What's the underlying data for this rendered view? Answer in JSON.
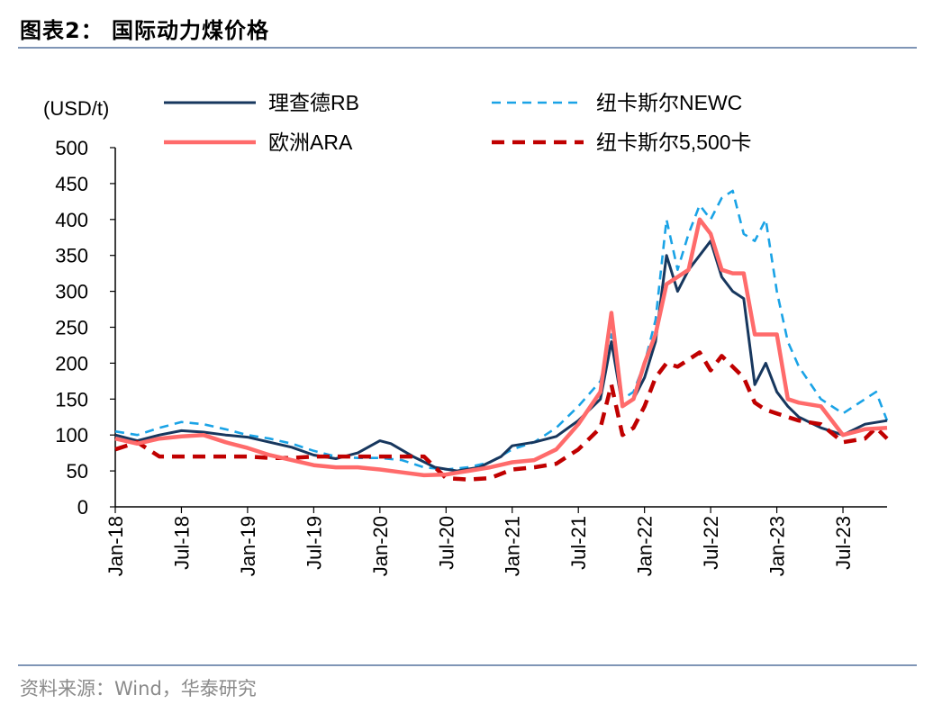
{
  "header": {
    "title": "图表2：  国际动力煤价格"
  },
  "footer": {
    "source": "资料来源：Wind，华泰研究"
  },
  "chart_data": {
    "type": "line",
    "unit_label": "(USD/t)",
    "ylim": [
      0,
      500
    ],
    "y_ticks": [
      0,
      50,
      100,
      150,
      200,
      250,
      300,
      350,
      400,
      450,
      500
    ],
    "x_range": [
      "2018-01",
      "2023-11"
    ],
    "x_ticks": [
      {
        "date": "2018-01",
        "label": "Jan-18"
      },
      {
        "date": "2018-07",
        "label": "Jul-18"
      },
      {
        "date": "2019-01",
        "label": "Jan-19"
      },
      {
        "date": "2019-07",
        "label": "Jul-19"
      },
      {
        "date": "2020-01",
        "label": "Jan-20"
      },
      {
        "date": "2020-07",
        "label": "Jul-20"
      },
      {
        "date": "2021-01",
        "label": "Jan-21"
      },
      {
        "date": "2021-07",
        "label": "Jul-21"
      },
      {
        "date": "2022-01",
        "label": "Jan-22"
      },
      {
        "date": "2022-07",
        "label": "Jul-22"
      },
      {
        "date": "2023-01",
        "label": "Jan-23"
      },
      {
        "date": "2023-07",
        "label": "Jul-23"
      }
    ],
    "grid": false,
    "legend_position": "top",
    "series": [
      {
        "name": "理查德RB",
        "color": "#17375e",
        "dash": "solid",
        "width": 3,
        "points": [
          [
            "2018-01",
            100
          ],
          [
            "2018-03",
            92
          ],
          [
            "2018-05",
            100
          ],
          [
            "2018-07",
            106
          ],
          [
            "2018-09",
            104
          ],
          [
            "2018-11",
            100
          ],
          [
            "2019-01",
            97
          ],
          [
            "2019-03",
            90
          ],
          [
            "2019-05",
            83
          ],
          [
            "2019-07",
            72
          ],
          [
            "2019-09",
            67
          ],
          [
            "2019-11",
            75
          ],
          [
            "2020-01",
            92
          ],
          [
            "2020-02",
            88
          ],
          [
            "2020-04",
            70
          ],
          [
            "2020-06",
            55
          ],
          [
            "2020-08",
            50
          ],
          [
            "2020-10",
            55
          ],
          [
            "2020-12",
            70
          ],
          [
            "2021-01",
            85
          ],
          [
            "2021-03",
            90
          ],
          [
            "2021-05",
            98
          ],
          [
            "2021-07",
            120
          ],
          [
            "2021-09",
            150
          ],
          [
            "2021-10",
            230
          ],
          [
            "2021-11",
            140
          ],
          [
            "2021-12",
            150
          ],
          [
            "2022-01",
            180
          ],
          [
            "2022-02",
            230
          ],
          [
            "2022-03",
            350
          ],
          [
            "2022-04",
            300
          ],
          [
            "2022-05",
            330
          ],
          [
            "2022-06",
            350
          ],
          [
            "2022-07",
            370
          ],
          [
            "2022-08",
            320
          ],
          [
            "2022-09",
            300
          ],
          [
            "2022-10",
            290
          ],
          [
            "2022-11",
            170
          ],
          [
            "2022-12",
            200
          ],
          [
            "2023-01",
            160
          ],
          [
            "2023-02",
            140
          ],
          [
            "2023-03",
            125
          ],
          [
            "2023-05",
            110
          ],
          [
            "2023-07",
            100
          ],
          [
            "2023-09",
            115
          ],
          [
            "2023-11",
            120
          ]
        ]
      },
      {
        "name": "纽卡斯尔NEWC",
        "color": "#1aa3e6",
        "dash": "dashed",
        "width": 2.6,
        "points": [
          [
            "2018-01",
            105
          ],
          [
            "2018-03",
            100
          ],
          [
            "2018-05",
            110
          ],
          [
            "2018-07",
            118
          ],
          [
            "2018-09",
            115
          ],
          [
            "2018-11",
            108
          ],
          [
            "2019-01",
            100
          ],
          [
            "2019-03",
            95
          ],
          [
            "2019-05",
            88
          ],
          [
            "2019-07",
            78
          ],
          [
            "2019-09",
            70
          ],
          [
            "2019-11",
            68
          ],
          [
            "2020-01",
            68
          ],
          [
            "2020-03",
            65
          ],
          [
            "2020-05",
            55
          ],
          [
            "2020-07",
            52
          ],
          [
            "2020-09",
            55
          ],
          [
            "2020-11",
            62
          ],
          [
            "2021-01",
            80
          ],
          [
            "2021-03",
            90
          ],
          [
            "2021-05",
            110
          ],
          [
            "2021-07",
            140
          ],
          [
            "2021-09",
            175
          ],
          [
            "2021-10",
            240
          ],
          [
            "2021-11",
            150
          ],
          [
            "2021-12",
            160
          ],
          [
            "2022-01",
            200
          ],
          [
            "2022-02",
            260
          ],
          [
            "2022-03",
            400
          ],
          [
            "2022-04",
            330
          ],
          [
            "2022-05",
            380
          ],
          [
            "2022-06",
            420
          ],
          [
            "2022-07",
            400
          ],
          [
            "2022-08",
            430
          ],
          [
            "2022-09",
            440
          ],
          [
            "2022-10",
            380
          ],
          [
            "2022-11",
            370
          ],
          [
            "2022-12",
            400
          ],
          [
            "2023-01",
            300
          ],
          [
            "2023-02",
            230
          ],
          [
            "2023-03",
            195
          ],
          [
            "2023-05",
            150
          ],
          [
            "2023-07",
            130
          ],
          [
            "2023-09",
            150
          ],
          [
            "2023-10",
            160
          ],
          [
            "2023-11",
            120
          ]
        ]
      },
      {
        "name": "欧洲ARA",
        "color": "#ff6b6b",
        "dash": "solid",
        "width": 4.5,
        "points": [
          [
            "2018-01",
            95
          ],
          [
            "2018-03",
            88
          ],
          [
            "2018-05",
            95
          ],
          [
            "2018-07",
            98
          ],
          [
            "2018-09",
            100
          ],
          [
            "2018-11",
            90
          ],
          [
            "2019-01",
            82
          ],
          [
            "2019-03",
            72
          ],
          [
            "2019-05",
            65
          ],
          [
            "2019-07",
            58
          ],
          [
            "2019-09",
            55
          ],
          [
            "2019-11",
            55
          ],
          [
            "2020-01",
            52
          ],
          [
            "2020-03",
            48
          ],
          [
            "2020-05",
            44
          ],
          [
            "2020-07",
            45
          ],
          [
            "2020-09",
            50
          ],
          [
            "2020-11",
            55
          ],
          [
            "2021-01",
            62
          ],
          [
            "2021-03",
            65
          ],
          [
            "2021-05",
            80
          ],
          [
            "2021-07",
            115
          ],
          [
            "2021-09",
            160
          ],
          [
            "2021-10",
            270
          ],
          [
            "2021-11",
            140
          ],
          [
            "2021-12",
            150
          ],
          [
            "2022-01",
            200
          ],
          [
            "2022-02",
            240
          ],
          [
            "2022-03",
            310
          ],
          [
            "2022-04",
            320
          ],
          [
            "2022-05",
            330
          ],
          [
            "2022-06",
            400
          ],
          [
            "2022-07",
            380
          ],
          [
            "2022-08",
            330
          ],
          [
            "2022-09",
            325
          ],
          [
            "2022-10",
            325
          ],
          [
            "2022-11",
            240
          ],
          [
            "2022-12",
            240
          ],
          [
            "2023-01",
            240
          ],
          [
            "2023-02",
            150
          ],
          [
            "2023-03",
            145
          ],
          [
            "2023-05",
            140
          ],
          [
            "2023-07",
            100
          ],
          [
            "2023-09",
            108
          ],
          [
            "2023-11",
            110
          ]
        ]
      },
      {
        "name": "纽卡斯尔5,500卡",
        "color": "#c00000",
        "dash": "dashed",
        "width": 4.5,
        "points": [
          [
            "2018-01",
            80
          ],
          [
            "2018-03",
            90
          ],
          [
            "2018-05",
            70
          ],
          [
            "2018-07",
            70
          ],
          [
            "2018-09",
            70
          ],
          [
            "2018-11",
            70
          ],
          [
            "2019-01",
            70
          ],
          [
            "2019-03",
            68
          ],
          [
            "2019-05",
            68
          ],
          [
            "2019-07",
            70
          ],
          [
            "2019-09",
            70
          ],
          [
            "2019-11",
            70
          ],
          [
            "2020-01",
            70
          ],
          [
            "2020-03",
            70
          ],
          [
            "2020-05",
            70
          ],
          [
            "2020-07",
            40
          ],
          [
            "2020-09",
            38
          ],
          [
            "2020-11",
            40
          ],
          [
            "2021-01",
            52
          ],
          [
            "2021-03",
            55
          ],
          [
            "2021-05",
            60
          ],
          [
            "2021-07",
            80
          ],
          [
            "2021-09",
            110
          ],
          [
            "2021-10",
            170
          ],
          [
            "2021-11",
            100
          ],
          [
            "2021-12",
            110
          ],
          [
            "2022-01",
            140
          ],
          [
            "2022-02",
            180
          ],
          [
            "2022-03",
            200
          ],
          [
            "2022-04",
            195
          ],
          [
            "2022-05",
            205
          ],
          [
            "2022-06",
            215
          ],
          [
            "2022-07",
            190
          ],
          [
            "2022-08",
            210
          ],
          [
            "2022-09",
            195
          ],
          [
            "2022-10",
            180
          ],
          [
            "2022-11",
            145
          ],
          [
            "2022-12",
            135
          ],
          [
            "2023-01",
            130
          ],
          [
            "2023-02",
            125
          ],
          [
            "2023-03",
            120
          ],
          [
            "2023-05",
            115
          ],
          [
            "2023-07",
            90
          ],
          [
            "2023-09",
            95
          ],
          [
            "2023-10",
            110
          ],
          [
            "2023-11",
            95
          ]
        ]
      }
    ]
  }
}
